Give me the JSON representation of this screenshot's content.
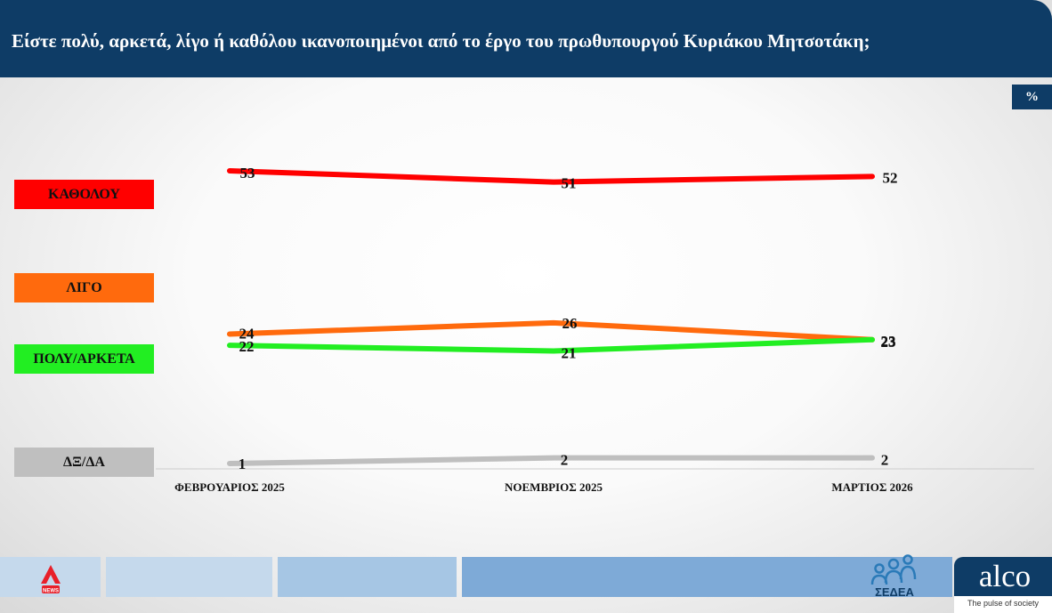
{
  "header": {
    "title": "Είστε πολύ, αρκετά, λίγο ή καθόλου ικανοποιημένοι από το έργο του πρωθυπουργού Κυριάκου Μητσοτάκη;"
  },
  "unit_label": "%",
  "chart_data": {
    "type": "line",
    "x": [
      "ΦΕΒΡΟΥΑΡΙΟΣ 2025",
      "ΝΟΕΜΒΡΙΟΣ 2025",
      "ΜΑΡΤΙΟΣ 2026"
    ],
    "ylim": [
      0,
      60
    ],
    "grid": false,
    "legend_position": "left",
    "series": [
      {
        "name": "ΚΑΘΟΛΟΥ",
        "color": "#ff0000",
        "values": [
          53,
          51,
          52
        ]
      },
      {
        "name": "ΛΙΓΟ",
        "color": "#ff6a0d",
        "values": [
          24,
          26,
          23
        ]
      },
      {
        "name": "ΠΟΛΥ/ΑΡΚΕΤΑ",
        "color": "#22ee22",
        "values": [
          22,
          21,
          23
        ]
      },
      {
        "name": "ΔΞ/ΔΑ",
        "color": "#bfbfbf",
        "values": [
          1,
          2,
          2
        ]
      }
    ]
  },
  "footer": {
    "news_logo_text": "NEWS",
    "sedea_text": "ΣΕΔΕΑ",
    "alco_name": "alco",
    "alco_tagline": "The pulse of society"
  }
}
